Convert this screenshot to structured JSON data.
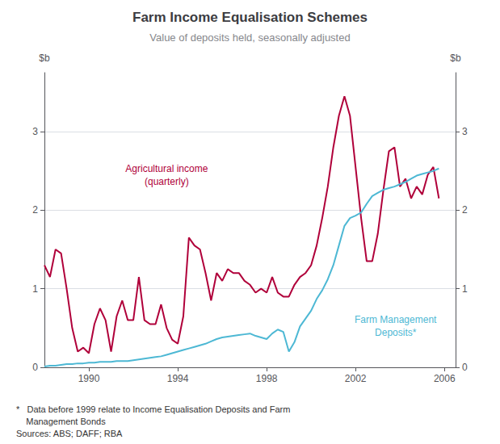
{
  "chart_data": {
    "type": "line",
    "title": "Farm Income Equalisation Schemes",
    "subtitle": "Value of deposits held, seasonally adjusted",
    "ylabel": "$b",
    "y2label": "$b",
    "notes": [
      "*   Data before 1999 relate to Income Equalisation Deposits and Farm",
      "    Management Bonds",
      "Sources: ABS; DAFF; RBA"
    ],
    "x": [
      1988.0,
      1988.25,
      1988.5,
      1988.75,
      1989.0,
      1989.25,
      1989.5,
      1989.75,
      1990.0,
      1990.25,
      1990.5,
      1990.75,
      1991.0,
      1991.25,
      1991.5,
      1991.75,
      1992.0,
      1992.25,
      1992.5,
      1992.75,
      1993.0,
      1993.25,
      1993.5,
      1993.75,
      1994.0,
      1994.25,
      1994.5,
      1994.75,
      1995.0,
      1995.25,
      1995.5,
      1995.75,
      1996.0,
      1996.25,
      1996.5,
      1996.75,
      1997.0,
      1997.25,
      1997.5,
      1997.75,
      1998.0,
      1998.25,
      1998.5,
      1998.75,
      1999.0,
      1999.25,
      1999.5,
      1999.75,
      2000.0,
      2000.25,
      2000.5,
      2000.75,
      2001.0,
      2001.25,
      2001.5,
      2001.75,
      2002.0,
      2002.25,
      2002.5,
      2002.75,
      2003.0,
      2003.25,
      2003.5,
      2003.75,
      2004.0,
      2004.25,
      2004.5,
      2004.75,
      2005.0,
      2005.25,
      2005.5,
      2005.75
    ],
    "series": [
      {
        "color": "#b0003a",
        "values": [
          1.3,
          1.15,
          1.5,
          1.45,
          1.0,
          0.5,
          0.2,
          0.25,
          0.18,
          0.55,
          0.75,
          0.6,
          0.2,
          0.65,
          0.85,
          0.6,
          0.6,
          1.15,
          0.6,
          0.55,
          0.55,
          0.8,
          0.5,
          0.35,
          0.3,
          0.65,
          1.65,
          1.55,
          1.5,
          1.2,
          0.85,
          1.2,
          1.1,
          1.25,
          1.2,
          1.2,
          1.1,
          1.05,
          0.95,
          1.0,
          0.95,
          1.15,
          0.95,
          0.9,
          0.9,
          1.05,
          1.15,
          1.2,
          1.3,
          1.55,
          1.9,
          2.3,
          2.8,
          3.2,
          3.45,
          3.2,
          2.55,
          1.9,
          1.35,
          1.35,
          1.7,
          2.25,
          2.75,
          2.8,
          2.3,
          2.4,
          2.15,
          2.3,
          2.2,
          2.45,
          2.55,
          2.15
        ],
        "annotation": {
          "text": "Agricultural income\n(quarterly)",
          "x": 1993.5,
          "y": 2.45
        }
      },
      {
        "color": "#4db8d4",
        "values": [
          0.01,
          0.02,
          0.02,
          0.03,
          0.04,
          0.04,
          0.05,
          0.05,
          0.06,
          0.06,
          0.07,
          0.07,
          0.07,
          0.08,
          0.08,
          0.08,
          0.09,
          0.1,
          0.11,
          0.12,
          0.13,
          0.14,
          0.16,
          0.18,
          0.2,
          0.22,
          0.24,
          0.26,
          0.28,
          0.3,
          0.33,
          0.36,
          0.38,
          0.39,
          0.4,
          0.41,
          0.42,
          0.43,
          0.4,
          0.38,
          0.36,
          0.43,
          0.48,
          0.45,
          0.2,
          0.32,
          0.52,
          0.62,
          0.72,
          0.87,
          0.98,
          1.12,
          1.3,
          1.55,
          1.8,
          1.9,
          1.93,
          1.97,
          2.08,
          2.18,
          2.22,
          2.26,
          2.28,
          2.3,
          2.33,
          2.36,
          2.4,
          2.44,
          2.46,
          2.48,
          2.5,
          2.53
        ],
        "annotation": {
          "text": "Farm Management\nDeposits*",
          "x": 2003.8,
          "y": 0.52
        }
      }
    ],
    "xlim": [
      1988.0,
      2006.5
    ],
    "xticks": [
      1990,
      1994,
      1998,
      2002,
      2006
    ],
    "ylim": [
      0,
      3.75
    ],
    "yticks": [
      0,
      1,
      2,
      3
    ],
    "y2lim": [
      0,
      3.75
    ],
    "y2ticks": [
      0,
      1,
      2,
      3
    ],
    "grid": true
  }
}
